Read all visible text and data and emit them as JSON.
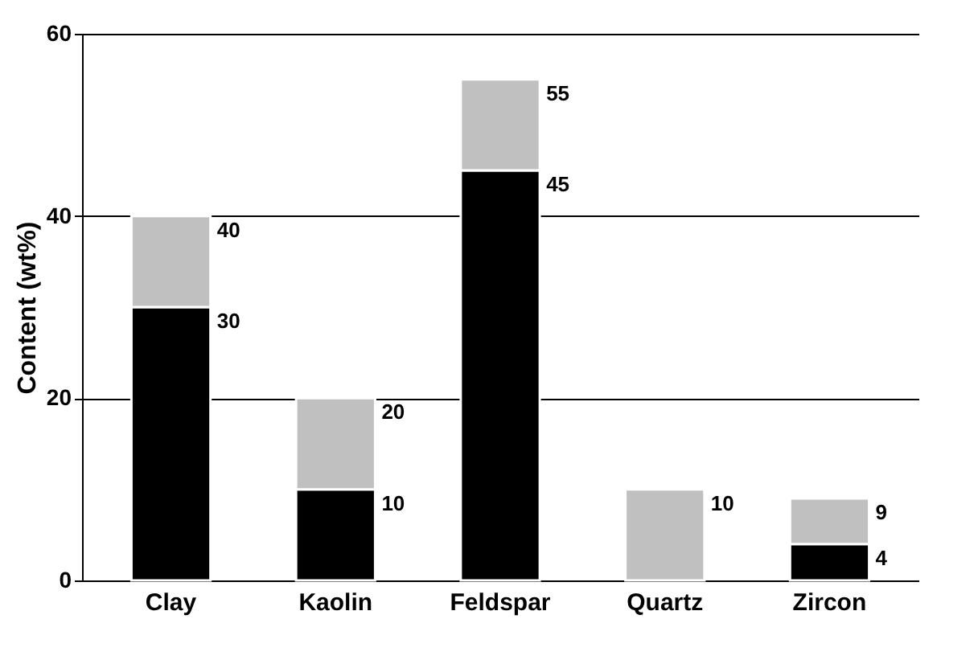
{
  "chart_data": {
    "type": "bar",
    "stacked": true,
    "ylabel": "Content (wt%)",
    "categories": [
      "Clay",
      "Kaolin",
      "Feldspar",
      "Quartz",
      "Zircon"
    ],
    "series": [
      {
        "color": "#000000",
        "values": [
          30,
          10,
          45,
          0,
          4
        ],
        "value_labels": [
          "30",
          "10",
          "45",
          null,
          "4"
        ]
      },
      {
        "color": "#c0c0c0",
        "values": [
          10,
          10,
          10,
          10,
          5
        ]
      }
    ],
    "totals": [
      "40",
      "20",
      "55",
      "10",
      "9"
    ],
    "ylim": [
      0,
      60
    ],
    "yticks": [
      0,
      20,
      40,
      60
    ],
    "grid": "y",
    "legend": false
  }
}
